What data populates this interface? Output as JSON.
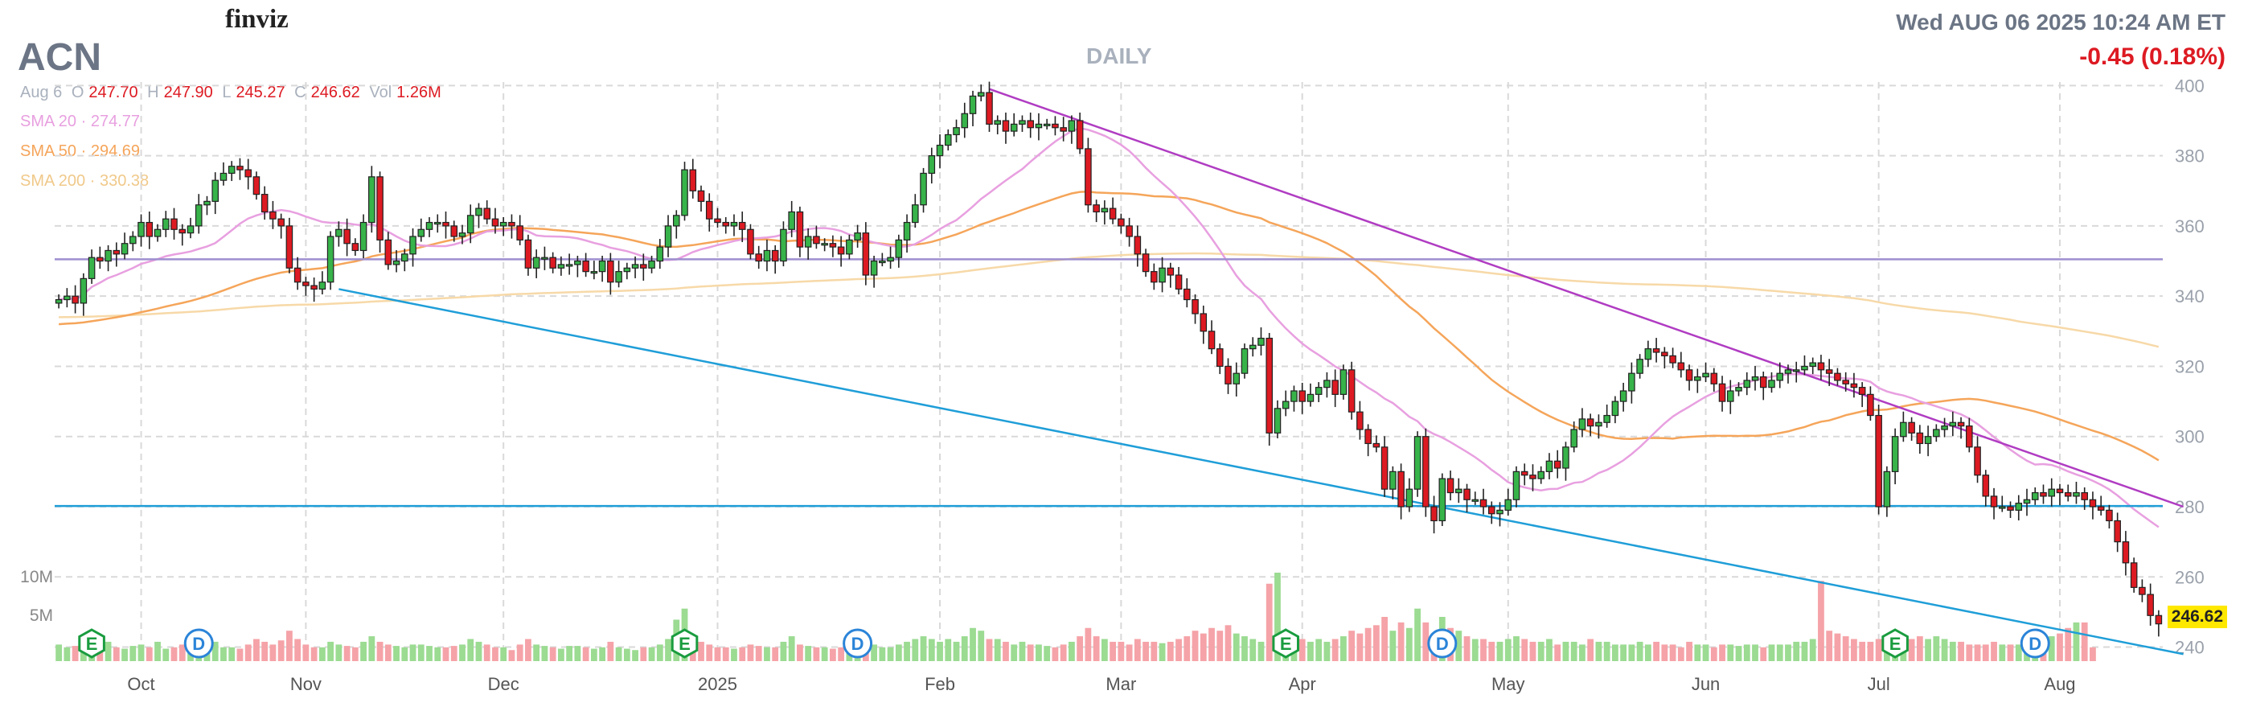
{
  "logo": "finviz",
  "ticker": "ACN",
  "period": "DAILY",
  "datetime": "Wed AUG 06 2025 10:24 AM ET",
  "change": "-0.45 (0.18%)",
  "ohlc": {
    "date": "Aug 6",
    "o_label": "O",
    "o": "247.70",
    "h_label": "H",
    "h": "247.90",
    "l_label": "L",
    "l": "245.27",
    "c_label": "C",
    "c": "246.62",
    "vol_label": "Vol",
    "vol": "1.26M"
  },
  "sma": [
    {
      "label": "SMA 20",
      "value": "274.77",
      "color": "#e8a0e0"
    },
    {
      "label": "SMA 50",
      "value": "294.69",
      "color": "#f5a55a"
    },
    {
      "label": "SMA 200",
      "value": "330.38",
      "color": "#f7d9a8"
    }
  ],
  "current_price": "246.62",
  "colors": {
    "up": "#37b34a",
    "down": "#dd1a22",
    "vol_up": "#9bdb92",
    "vol_down": "#f5a3a8",
    "grid": "#d9d9d9"
  },
  "chart_data": {
    "type": "candlestick",
    "x_ticks": [
      "Oct",
      "Nov",
      "Dec",
      "2025",
      "Feb",
      "Mar",
      "Apr",
      "May",
      "Jun",
      "Jul",
      "Aug"
    ],
    "y_ticks": [
      240,
      260,
      280,
      300,
      320,
      340,
      360,
      380,
      400
    ],
    "ylim": [
      236,
      401
    ],
    "volume_ticks": [
      "10M",
      "5M"
    ],
    "grid": true,
    "candles_close": [
      339,
      340,
      338,
      345,
      351,
      350,
      353,
      352,
      355,
      357,
      361,
      357,
      359,
      362,
      359,
      358,
      360,
      366,
      367,
      373,
      375,
      377,
      376,
      374,
      369,
      364,
      362,
      360,
      348,
      344,
      343,
      342,
      344,
      357,
      359,
      355,
      353,
      361,
      374,
      356,
      349,
      350,
      352,
      357,
      359,
      361,
      361,
      360,
      357,
      358,
      363,
      365,
      362,
      360,
      361,
      360,
      356,
      348,
      351,
      351,
      348,
      349,
      349,
      350,
      347,
      347,
      350,
      344,
      347,
      348,
      349,
      348,
      350,
      354,
      360,
      363,
      376,
      370,
      367,
      362,
      361,
      360,
      361,
      359,
      352,
      350,
      353,
      350,
      359,
      364,
      354,
      357,
      355,
      355,
      354,
      352,
      356,
      358,
      346,
      350,
      350,
      351,
      356,
      361,
      366,
      375,
      380,
      383,
      386,
      388,
      392,
      397,
      398,
      389,
      390,
      387,
      389,
      390,
      388,
      389,
      389,
      388,
      387,
      390,
      382,
      366,
      364,
      365,
      362,
      360,
      357,
      352,
      347,
      344,
      348,
      346,
      342,
      339,
      335,
      330,
      325,
      320,
      315,
      318,
      325,
      326,
      328,
      301,
      308,
      310,
      313,
      310,
      312,
      314,
      316,
      312,
      319,
      307,
      302,
      298,
      297,
      285,
      290,
      280,
      285,
      300,
      280,
      276,
      288,
      284,
      285,
      282,
      282,
      280,
      278,
      279,
      282,
      290,
      289,
      288,
      290,
      293,
      291,
      297,
      302,
      305,
      303,
      304,
      306,
      310,
      313,
      318,
      322,
      325,
      324,
      323,
      321,
      319,
      316,
      317,
      318,
      315,
      310,
      313,
      314,
      316,
      317,
      314,
      316,
      318,
      319,
      319,
      320,
      321,
      319,
      318,
      316,
      315,
      314,
      312,
      306,
      280,
      290,
      300,
      304,
      301,
      298,
      300,
      302,
      303,
      304,
      303,
      297,
      289,
      283,
      280,
      280,
      279,
      281,
      282,
      284,
      283,
      285,
      284,
      283,
      284,
      282,
      280,
      279,
      276,
      270,
      264,
      257,
      255,
      249,
      246.62
    ],
    "volume_relative": [
      0.6,
      0.5,
      0.55,
      0.4,
      0.45,
      0.5,
      0.7,
      0.5,
      0.45,
      0.55,
      0.6,
      0.5,
      0.7,
      0.45,
      0.5,
      0.6,
      0.4,
      0.55,
      0.6,
      0.7,
      0.5,
      0.5,
      0.45,
      0.6,
      0.8,
      0.7,
      0.6,
      0.75,
      1.1,
      0.8,
      0.6,
      0.5,
      0.5,
      0.7,
      0.6,
      0.55,
      0.5,
      0.7,
      0.9,
      0.7,
      0.6,
      0.55,
      0.5,
      0.6,
      0.6,
      0.55,
      0.5,
      0.5,
      0.55,
      0.6,
      0.8,
      0.7,
      0.6,
      0.5,
      0.5,
      0.4,
      0.6,
      0.8,
      0.6,
      0.55,
      0.5,
      0.45,
      0.55,
      0.55,
      0.5,
      0.45,
      0.5,
      0.7,
      0.5,
      0.45,
      0.4,
      0.5,
      0.5,
      0.6,
      0.8,
      1.5,
      1.9,
      0.9,
      0.7,
      0.6,
      0.5,
      0.5,
      0.45,
      0.5,
      0.6,
      0.55,
      0.5,
      0.5,
      0.7,
      0.9,
      0.6,
      0.55,
      0.5,
      0.5,
      0.45,
      0.5,
      0.6,
      0.55,
      0.8,
      0.6,
      0.5,
      0.5,
      0.6,
      0.7,
      0.8,
      0.9,
      0.8,
      0.7,
      0.8,
      0.7,
      0.9,
      1.2,
      1.1,
      0.8,
      0.8,
      0.7,
      0.6,
      0.7,
      0.6,
      0.6,
      0.55,
      0.5,
      0.6,
      0.7,
      0.9,
      1.2,
      0.9,
      0.8,
      0.7,
      0.7,
      0.6,
      0.8,
      0.7,
      0.7,
      0.65,
      0.7,
      0.8,
      0.9,
      1.1,
      1.0,
      1.2,
      1.1,
      1.3,
      1.0,
      0.9,
      0.8,
      0.7,
      2.8,
      3.2,
      1.0,
      0.9,
      0.8,
      0.7,
      0.8,
      0.7,
      0.8,
      0.9,
      1.1,
      1.0,
      1.2,
      1.3,
      1.6,
      1.1,
      1.4,
      1.2,
      1.9,
      1.4,
      1.0,
      1.6,
      1.2,
      1.1,
      0.9,
      0.8,
      0.8,
      0.7,
      0.7,
      0.8,
      0.9,
      0.8,
      0.7,
      0.7,
      0.8,
      0.6,
      0.7,
      0.7,
      0.6,
      0.8,
      0.7,
      0.7,
      0.6,
      0.6,
      0.6,
      0.7,
      0.6,
      0.7,
      0.6,
      0.6,
      0.5,
      0.7,
      0.6,
      0.6,
      0.5,
      0.6,
      0.6,
      0.55,
      0.6,
      0.6,
      0.5,
      0.6,
      0.6,
      0.6,
      0.7,
      0.7,
      0.8,
      2.9,
      1.1,
      1.0,
      0.9,
      0.8,
      0.7,
      0.7,
      0.8,
      0.7,
      0.7,
      0.6,
      0.8,
      0.9,
      0.8,
      0.9,
      0.8,
      0.7,
      0.7,
      0.6,
      0.6,
      0.6,
      0.7,
      0.6,
      0.6,
      0.6,
      0.7,
      0.7,
      0.8,
      0.9,
      1.0,
      1.2,
      1.4,
      1.4,
      0.5
    ],
    "overlays": [
      {
        "name": "SMA 20",
        "color": "#e8a0e0"
      },
      {
        "name": "SMA 50",
        "color": "#f5a55a"
      },
      {
        "name": "SMA 200",
        "color": "#f7d9a8"
      },
      {
        "name": "horizontal line",
        "value": 350.5,
        "color": "#9e8fcf"
      },
      {
        "name": "horizontal line",
        "value": 280.2,
        "color": "#1f9ed8"
      },
      {
        "name": "trendline",
        "color": "#b03cc2",
        "from": [
          113,
          399
        ],
        "to": [
          258,
          280
        ]
      },
      {
        "name": "trendline",
        "color": "#1f9ed8",
        "from": [
          34,
          342
        ],
        "to": [
          258,
          238
        ]
      }
    ],
    "events": [
      {
        "type": "E",
        "index": 4
      },
      {
        "type": "D",
        "index": 17
      },
      {
        "type": "E",
        "index": 76
      },
      {
        "type": "D",
        "index": 97
      },
      {
        "type": "E",
        "index": 149
      },
      {
        "type": "D",
        "index": 168
      },
      {
        "type": "E",
        "index": 223
      },
      {
        "type": "D",
        "index": 240
      }
    ]
  }
}
